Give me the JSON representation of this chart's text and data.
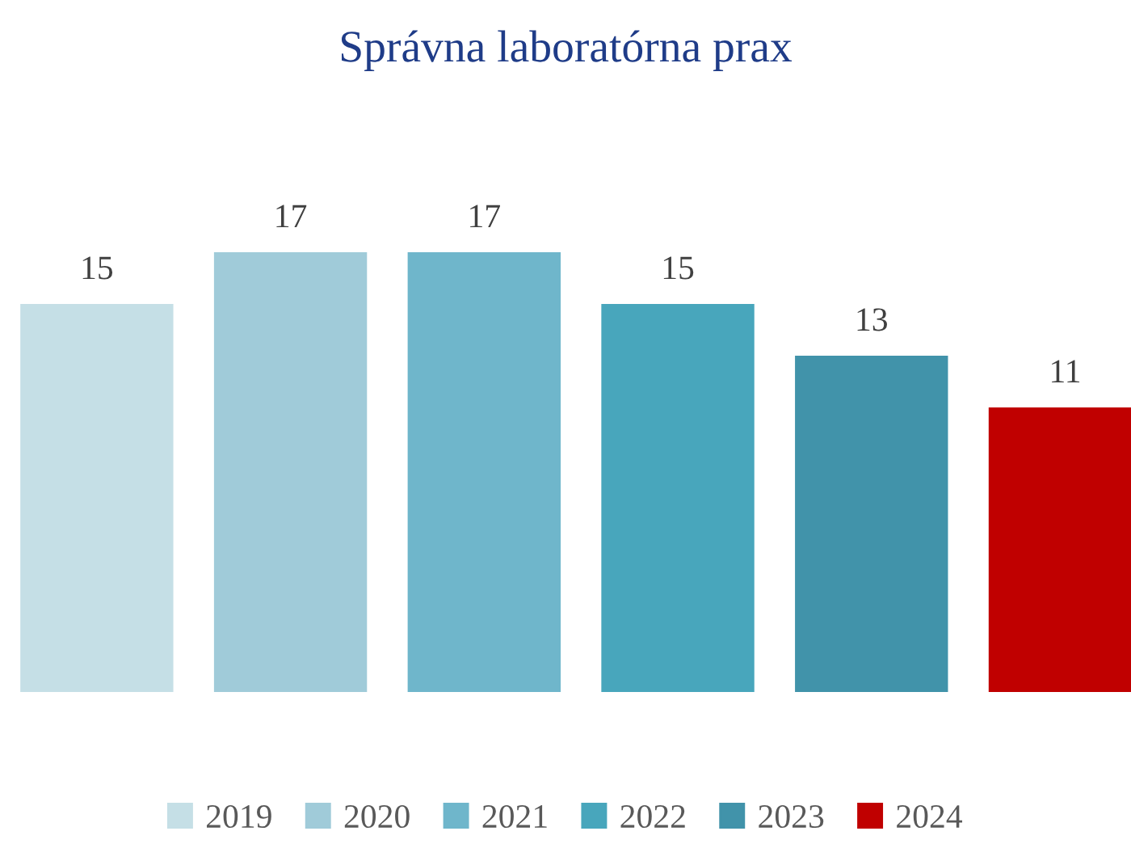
{
  "chart_data": {
    "type": "bar",
    "title": "Správna laboratórna prax",
    "categories": [
      null
    ],
    "series": [
      {
        "name": "2019",
        "color": "#c5dfe6",
        "values": [
          15
        ]
      },
      {
        "name": "2020",
        "color": "#a0cbd9",
        "values": [
          17
        ]
      },
      {
        "name": "2021",
        "color": "#6fb6cb",
        "values": [
          17
        ]
      },
      {
        "name": "2022",
        "color": "#48a6bc",
        "values": [
          15
        ]
      },
      {
        "name": "2023",
        "color": "#4193aa",
        "values": [
          13
        ]
      },
      {
        "name": "2024",
        "color": "#c00000",
        "values": [
          11
        ]
      }
    ],
    "data_labels": true,
    "legend": "bottom"
  }
}
